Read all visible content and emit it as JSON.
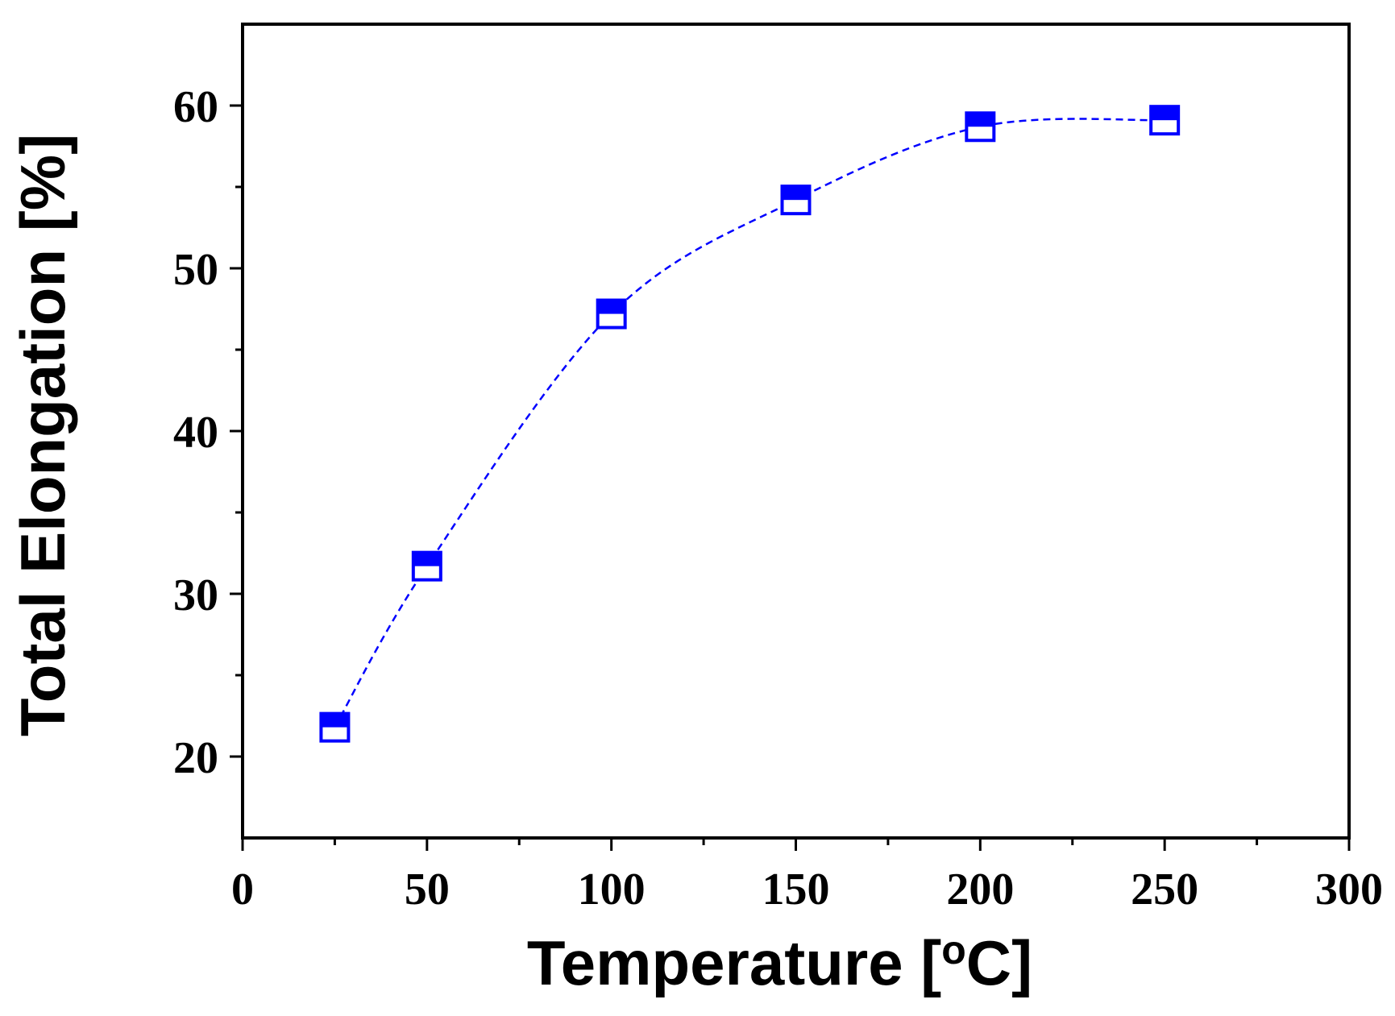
{
  "chart_data": {
    "type": "line",
    "title": "",
    "xlabel": "Temperature [°C]",
    "xlabel_parts": {
      "pre": "Temperature [",
      "sup": "o",
      "post": "C]"
    },
    "ylabel": "Total Elongation [%]",
    "xlim": [
      0,
      300
    ],
    "ylim": [
      15,
      65
    ],
    "xticks": [
      0,
      50,
      100,
      150,
      200,
      250,
      300
    ],
    "xtick_labels": [
      "0",
      "50",
      "100",
      "150",
      "200",
      "250",
      "300"
    ],
    "xminor_step": 25,
    "yticks": [
      20,
      30,
      40,
      50,
      60
    ],
    "ytick_labels": [
      "20",
      "30",
      "40",
      "50",
      "60"
    ],
    "yminor_step": 5,
    "grid": false,
    "legend": "none",
    "series": [
      {
        "name": "Total Elongation",
        "color": "#0000ff",
        "marker": "half-filled-square",
        "line_style": "dashed",
        "x": [
          25,
          50,
          100,
          150,
          200,
          250
        ],
        "values": [
          21.8,
          31.7,
          47.2,
          54.2,
          58.7,
          59.1
        ]
      }
    ]
  }
}
